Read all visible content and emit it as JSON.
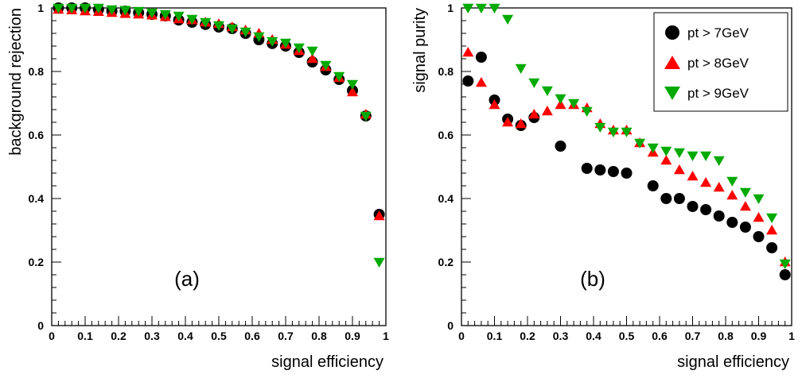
{
  "chart_data": [
    {
      "type": "scatter",
      "panel_label": "(a)",
      "xlabel": "signal efficiency",
      "ylabel": "background rejection",
      "xlim": [
        0,
        1
      ],
      "ylim": [
        0,
        1
      ],
      "x_ticks": [
        "0",
        "0.1",
        "0.2",
        "0.3",
        "0.4",
        "0.5",
        "0.6",
        "0.7",
        "0.8",
        "0.9",
        "1"
      ],
      "y_ticks": [
        "0",
        "0.2",
        "0.4",
        "0.6",
        "0.8",
        "1"
      ],
      "series": [
        {
          "name": "pt > 7GeV",
          "marker": "circle",
          "color": "#000000",
          "points": [
            [
              0.02,
              1.0
            ],
            [
              0.06,
              1.0
            ],
            [
              0.1,
              1.0
            ],
            [
              0.14,
              0.995
            ],
            [
              0.18,
              0.99
            ],
            [
              0.22,
              0.99
            ],
            [
              0.26,
              0.985
            ],
            [
              0.3,
              0.98
            ],
            [
              0.34,
              0.975
            ],
            [
              0.38,
              0.962
            ],
            [
              0.42,
              0.955
            ],
            [
              0.46,
              0.948
            ],
            [
              0.5,
              0.94
            ],
            [
              0.54,
              0.935
            ],
            [
              0.58,
              0.92
            ],
            [
              0.62,
              0.9
            ],
            [
              0.66,
              0.888
            ],
            [
              0.7,
              0.88
            ],
            [
              0.74,
              0.86
            ],
            [
              0.78,
              0.83
            ],
            [
              0.82,
              0.805
            ],
            [
              0.86,
              0.775
            ],
            [
              0.9,
              0.74
            ],
            [
              0.94,
              0.66
            ],
            [
              0.98,
              0.35
            ]
          ]
        },
        {
          "name": "pt > 8GeV",
          "marker": "triangle-up",
          "color": "#ff0000",
          "points": [
            [
              0.02,
              0.995
            ],
            [
              0.06,
              0.993
            ],
            [
              0.1,
              0.99
            ],
            [
              0.14,
              0.988
            ],
            [
              0.18,
              0.985
            ],
            [
              0.22,
              0.982
            ],
            [
              0.26,
              0.98
            ],
            [
              0.3,
              0.977
            ],
            [
              0.34,
              0.972
            ],
            [
              0.38,
              0.965
            ],
            [
              0.42,
              0.962
            ],
            [
              0.46,
              0.955
            ],
            [
              0.5,
              0.95
            ],
            [
              0.54,
              0.94
            ],
            [
              0.58,
              0.93
            ],
            [
              0.62,
              0.92
            ],
            [
              0.66,
              0.9
            ],
            [
              0.7,
              0.885
            ],
            [
              0.74,
              0.865
            ],
            [
              0.78,
              0.84
            ],
            [
              0.82,
              0.815
            ],
            [
              0.86,
              0.78
            ],
            [
              0.9,
              0.735
            ],
            [
              0.94,
              0.665
            ],
            [
              0.98,
              0.345
            ]
          ]
        },
        {
          "name": "pt > 9GeV",
          "marker": "triangle-down",
          "color": "#00aa00",
          "points": [
            [
              0.02,
              1.0
            ],
            [
              0.06,
              1.0
            ],
            [
              0.1,
              1.0
            ],
            [
              0.14,
              1.0
            ],
            [
              0.18,
              0.995
            ],
            [
              0.22,
              0.993
            ],
            [
              0.26,
              0.99
            ],
            [
              0.3,
              0.985
            ],
            [
              0.34,
              0.98
            ],
            [
              0.38,
              0.975
            ],
            [
              0.42,
              0.965
            ],
            [
              0.46,
              0.955
            ],
            [
              0.5,
              0.945
            ],
            [
              0.54,
              0.935
            ],
            [
              0.58,
              0.925
            ],
            [
              0.62,
              0.91
            ],
            [
              0.66,
              0.895
            ],
            [
              0.7,
              0.89
            ],
            [
              0.74,
              0.875
            ],
            [
              0.78,
              0.865
            ],
            [
              0.82,
              0.82
            ],
            [
              0.86,
              0.785
            ],
            [
              0.9,
              0.76
            ],
            [
              0.94,
              0.66
            ],
            [
              0.98,
              0.2
            ]
          ]
        }
      ]
    },
    {
      "type": "scatter",
      "panel_label": "(b)",
      "xlabel": "signal efficiency",
      "ylabel": "signal purity",
      "xlim": [
        0,
        1
      ],
      "ylim": [
        0,
        1
      ],
      "x_ticks": [
        "0",
        "0.1",
        "0.2",
        "0.3",
        "0.4",
        "0.5",
        "0.6",
        "0.7",
        "0.8",
        "0.9",
        "1"
      ],
      "y_ticks": [
        "0",
        "0.2",
        "0.4",
        "0.6",
        "0.8",
        "1"
      ],
      "legend_position": "top-right",
      "series": [
        {
          "name": "pt > 7GeV",
          "marker": "circle",
          "color": "#000000",
          "points": [
            [
              0.02,
              0.77
            ],
            [
              0.06,
              0.845
            ],
            [
              0.1,
              0.71
            ],
            [
              0.14,
              0.65
            ],
            [
              0.18,
              0.63
            ],
            [
              0.22,
              0.655
            ],
            [
              0.3,
              0.565
            ],
            [
              0.38,
              0.495
            ],
            [
              0.42,
              0.49
            ],
            [
              0.46,
              0.485
            ],
            [
              0.5,
              0.48
            ],
            [
              0.58,
              0.44
            ],
            [
              0.62,
              0.4
            ],
            [
              0.66,
              0.4
            ],
            [
              0.7,
              0.375
            ],
            [
              0.74,
              0.365
            ],
            [
              0.78,
              0.345
            ],
            [
              0.82,
              0.325
            ],
            [
              0.86,
              0.31
            ],
            [
              0.9,
              0.28
            ],
            [
              0.94,
              0.245
            ],
            [
              0.98,
              0.16
            ]
          ]
        },
        {
          "name": "pt > 8GeV",
          "marker": "triangle-up",
          "color": "#ff0000",
          "points": [
            [
              0.02,
              0.86
            ],
            [
              0.06,
              0.765
            ],
            [
              0.1,
              0.695
            ],
            [
              0.14,
              0.64
            ],
            [
              0.18,
              0.635
            ],
            [
              0.22,
              0.665
            ],
            [
              0.26,
              0.675
            ],
            [
              0.3,
              0.695
            ],
            [
              0.34,
              0.695
            ],
            [
              0.38,
              0.685
            ],
            [
              0.42,
              0.635
            ],
            [
              0.46,
              0.615
            ],
            [
              0.5,
              0.615
            ],
            [
              0.54,
              0.575
            ],
            [
              0.58,
              0.545
            ],
            [
              0.62,
              0.52
            ],
            [
              0.66,
              0.49
            ],
            [
              0.7,
              0.47
            ],
            [
              0.74,
              0.45
            ],
            [
              0.78,
              0.435
            ],
            [
              0.82,
              0.41
            ],
            [
              0.86,
              0.375
            ],
            [
              0.9,
              0.34
            ],
            [
              0.94,
              0.3
            ],
            [
              0.98,
              0.2
            ]
          ]
        },
        {
          "name": "pt > 9GeV",
          "marker": "triangle-down",
          "color": "#00aa00",
          "points": [
            [
              0.02,
              1.0
            ],
            [
              0.06,
              1.0
            ],
            [
              0.1,
              1.0
            ],
            [
              0.14,
              0.965
            ],
            [
              0.18,
              0.81
            ],
            [
              0.22,
              0.765
            ],
            [
              0.26,
              0.74
            ],
            [
              0.3,
              0.715
            ],
            [
              0.34,
              0.7
            ],
            [
              0.38,
              0.675
            ],
            [
              0.42,
              0.625
            ],
            [
              0.46,
              0.61
            ],
            [
              0.5,
              0.61
            ],
            [
              0.54,
              0.575
            ],
            [
              0.58,
              0.56
            ],
            [
              0.62,
              0.55
            ],
            [
              0.66,
              0.545
            ],
            [
              0.7,
              0.535
            ],
            [
              0.74,
              0.535
            ],
            [
              0.78,
              0.52
            ],
            [
              0.82,
              0.455
            ],
            [
              0.86,
              0.42
            ],
            [
              0.9,
              0.4
            ],
            [
              0.94,
              0.34
            ],
            [
              0.98,
              0.195
            ]
          ]
        }
      ]
    }
  ]
}
